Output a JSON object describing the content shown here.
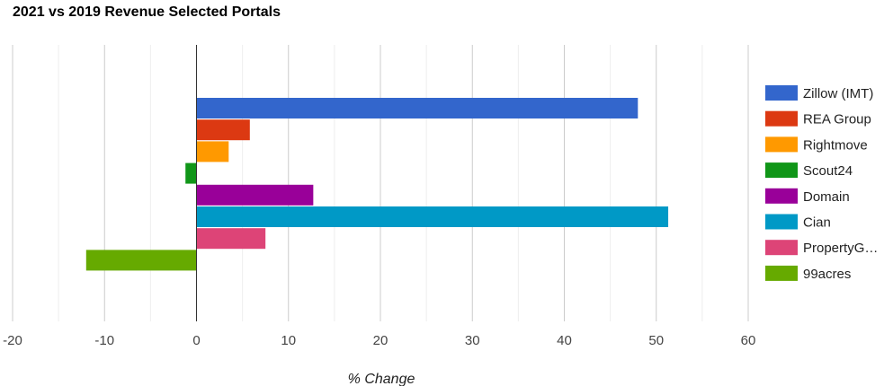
{
  "chart_data": {
    "type": "bar",
    "orientation": "horizontal",
    "title": "2021 vs 2019 Revenue Selected Portals",
    "xlabel": "% Change",
    "ylabel": "",
    "xlim": [
      -20,
      60
    ],
    "x_ticks": [
      -20,
      -10,
      0,
      10,
      20,
      30,
      40,
      50,
      60
    ],
    "minor_gridlines": true,
    "legend_position": "right",
    "series": [
      {
        "name": "Zillow (IMT)",
        "value": 48,
        "color": "#3366cc"
      },
      {
        "name": "REA Group",
        "value": 5.8,
        "color": "#dc3912"
      },
      {
        "name": "Rightmove",
        "value": 3.5,
        "color": "#ff9900"
      },
      {
        "name": "Scout24",
        "value": -1.2,
        "color": "#109618"
      },
      {
        "name": "Domain",
        "value": 12.7,
        "color": "#990099"
      },
      {
        "name": "Cian",
        "value": 51.3,
        "color": "#0099c6"
      },
      {
        "name": "PropertyG…",
        "value": 7.5,
        "color": "#dd4477"
      },
      {
        "name": "99acres",
        "value": -12,
        "color": "#66aa00"
      }
    ]
  }
}
